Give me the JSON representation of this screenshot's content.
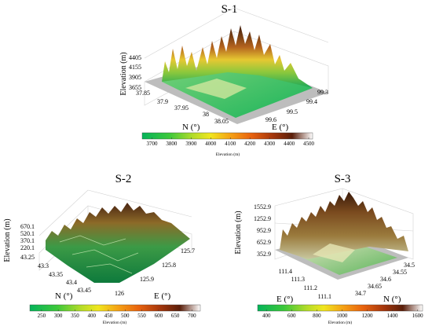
{
  "figure": {
    "colorbar_label": "Elevation (m)"
  },
  "chart_data": [
    {
      "type": "surface",
      "title": "S-1",
      "zlabel": "Elevation (m)",
      "z_ticks": [
        "3655",
        "3905",
        "4155",
        "4405"
      ],
      "n_label": "N (°)",
      "n_ticks": [
        "37.85",
        "37.9",
        "37.95",
        "38",
        "38.05"
      ],
      "e_label": "E (°)",
      "e_ticks": [
        "99.3",
        "99.4",
        "99.5",
        "99.6"
      ],
      "colorbar": {
        "label": "Elevation (m)",
        "ticks": [
          "3700",
          "3800",
          "3900",
          "4000",
          "4100",
          "4200",
          "4300",
          "4400",
          "4500"
        ],
        "range": [
          3650,
          4520
        ]
      }
    },
    {
      "type": "surface",
      "title": "S-2",
      "zlabel": "Elevation (m)",
      "z_ticks": [
        "220.1",
        "370.1",
        "520.1",
        "670.1"
      ],
      "n_label": "N (°)",
      "n_ticks": [
        "43.25",
        "43.3",
        "43.35",
        "43.4",
        "43.45"
      ],
      "e_label": "E (°)",
      "e_ticks": [
        "125.7",
        "125.8",
        "125.9",
        "126"
      ],
      "colorbar": {
        "label": "Elevation (m)",
        "ticks": [
          "250",
          "300",
          "350",
          "400",
          "450",
          "500",
          "550",
          "600",
          "650",
          "700"
        ],
        "range": [
          215,
          725
        ]
      }
    },
    {
      "type": "surface",
      "title": "S-3",
      "zlabel": "Elevation (m)",
      "z_ticks": [
        "352.9",
        "652.9",
        "952.9",
        "1252.9",
        "1552.9"
      ],
      "n_label": "N (°)",
      "n_ticks": [
        "34.5",
        "34.55",
        "34.6",
        "34.65",
        "34.7"
      ],
      "e_label": "E (°)",
      "e_ticks": [
        "111.1",
        "111.2",
        "111.3",
        "111.4"
      ],
      "colorbar": {
        "label": "Elevation (m)",
        "ticks": [
          "400",
          "600",
          "800",
          "1000",
          "1200",
          "1400",
          "1600"
        ],
        "range": [
          330,
          1640
        ]
      }
    }
  ]
}
